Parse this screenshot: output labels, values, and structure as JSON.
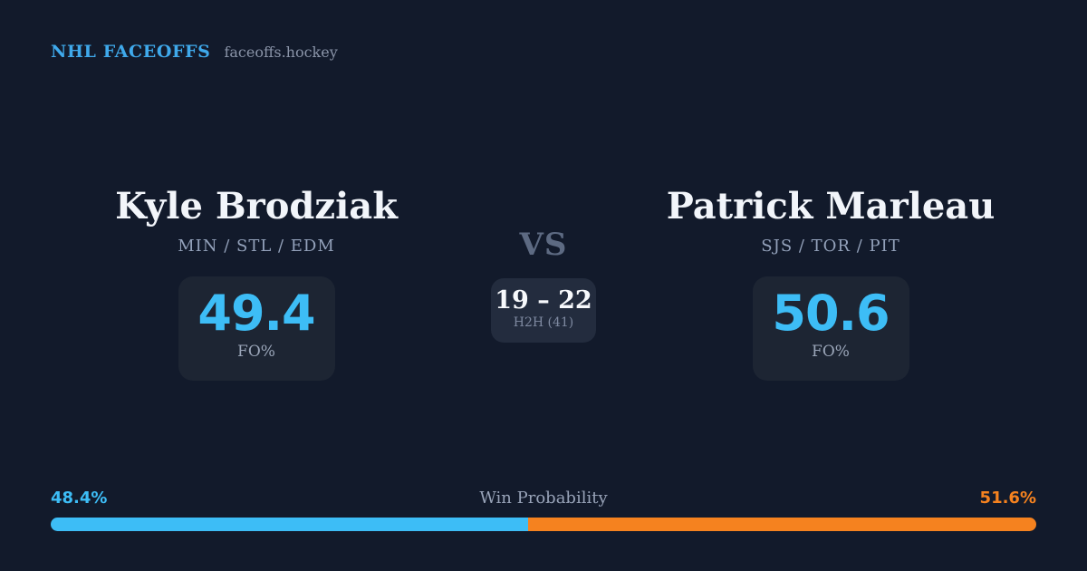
{
  "header": {
    "brand": "NHL FACEOFFS",
    "domain": "faceoffs.hockey"
  },
  "matchup": {
    "vs_label": "VS",
    "h2h": {
      "score": "19 – 22",
      "label": "H2H (41)"
    },
    "player1": {
      "name": "Kyle Brodziak",
      "teams": "MIN / STL / EDM",
      "fo_value": "49.4",
      "fo_label": "FO%"
    },
    "player2": {
      "name": "Patrick Marleau",
      "teams": "SJS / TOR / PIT",
      "fo_value": "50.6",
      "fo_label": "FO%"
    }
  },
  "win_probability": {
    "title": "Win Probability",
    "left_label": "48.4%",
    "right_label": "51.6%",
    "left_value": 48.4,
    "right_value": 51.6
  },
  "colors": {
    "page_bg": "#121A2B",
    "box_bg": "#1D2533",
    "h2h_bg": "#232C3E",
    "accent_blue": "#3DBDF6",
    "brand_blue": "#3FA9EB",
    "accent_orange": "#F5821F",
    "name_color": "#F2F5FA",
    "teams_color": "#93A1BA",
    "muted": "#8A94A8",
    "stat_label_color": "#9AA5B8",
    "h2h_label_color": "#7E89A0",
    "vs_color": "#5D6A82",
    "wp_title_color": "#98A3B8",
    "score_color": "#F7F9FC"
  }
}
